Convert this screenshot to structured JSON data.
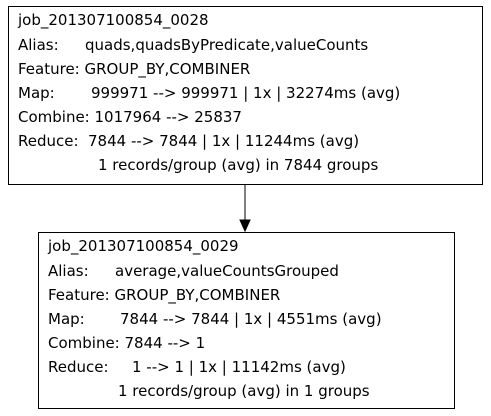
{
  "nodes": [
    {
      "job_id": "job_201307100854_0028",
      "alias_label": "Alias:",
      "alias_value": "quads,quadsByPredicate,valueCounts",
      "feature": "Feature: GROUP_BY,COMBINER",
      "map_label": "Map:",
      "map_value": "999971 --> 999971 | 1x | 32274ms (avg)",
      "combine": "Combine: 1017964 --> 25837",
      "reduce_label": "Reduce:",
      "reduce_value": "7844 --> 7844 | 1x | 11244ms (avg)",
      "records": "1 records/group (avg) in 7844 groups"
    },
    {
      "job_id": "job_201307100854_0029",
      "alias_label": "Alias:",
      "alias_value": "average,valueCountsGrouped",
      "feature": "Feature: GROUP_BY,COMBINER",
      "map_label": "Map:",
      "map_value": "7844 --> 7844 | 1x | 4551ms (avg)",
      "combine": "Combine: 7844 --> 1",
      "reduce_label": "Reduce:",
      "reduce_value": "1 --> 1 | 1x | 11142ms (avg)",
      "records": "1 records/group (avg) in 1 groups"
    }
  ],
  "edges": [
    {
      "from": "job_201307100854_0028",
      "to": "job_201307100854_0029"
    }
  ]
}
